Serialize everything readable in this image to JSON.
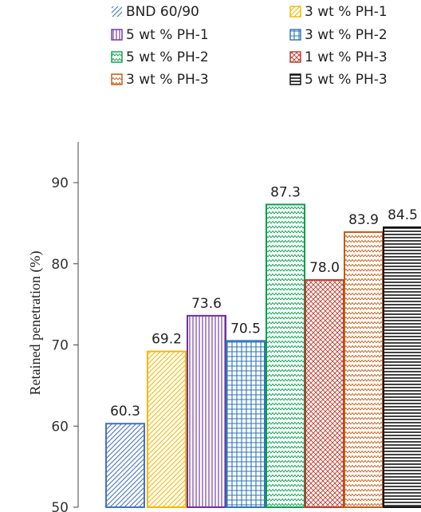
{
  "chart_data": {
    "type": "bar",
    "title": "",
    "xlabel": "",
    "ylabel": "Retained penetration (%)",
    "ylim": [
      50,
      95
    ],
    "yticks": [
      50,
      60,
      70,
      80,
      90
    ],
    "grid": false,
    "legend_position": "top",
    "categories": [
      "BND 60/90",
      "3 wt % PH-1",
      "5 wt % PH-1",
      "3 wt % PH-2",
      "5 wt % PH-2",
      "1 wt % PH-3",
      "3 wt % PH-3",
      "5 wt % PH-3"
    ],
    "values": [
      60.3,
      69.2,
      73.6,
      70.5,
      87.3,
      78.0,
      83.9,
      84.5
    ],
    "value_labels": [
      "60.3",
      "69.2",
      "73.6",
      "70.5",
      "87.3",
      "78.0",
      "83.9",
      "84.5"
    ],
    "series_styles": [
      {
        "color": "#4472c4",
        "pattern": "diagonal-lines"
      },
      {
        "color": "#f5b800",
        "pattern": "diagonal-lines"
      },
      {
        "color": "#7030a0",
        "pattern": "vertical-lines"
      },
      {
        "color": "#2e75b6",
        "pattern": "grid"
      },
      {
        "color": "#00a04a",
        "pattern": "zigzag"
      },
      {
        "color": "#c0392b",
        "pattern": "crosshatch"
      },
      {
        "color": "#c55a11",
        "pattern": "zigzag"
      },
      {
        "color": "#111111",
        "pattern": "horizontal-lines"
      }
    ],
    "legend": [
      {
        "label": "BND 60/90",
        "color": "#4472c4"
      },
      {
        "label": "3 wt % PH-1",
        "color": "#f5b800"
      },
      {
        "label": "5 wt % PH-1",
        "color": "#7030a0"
      },
      {
        "label": "3 wt % PH-2",
        "color": "#2e75b6"
      },
      {
        "label": "5 wt % PH-2",
        "color": "#00a04a"
      },
      {
        "label": "1 wt % PH-3",
        "color": "#c0392b"
      },
      {
        "label": "3 wt % PH-3",
        "color": "#c55a11"
      },
      {
        "label": "5 wt % PH-3",
        "color": "#111111"
      }
    ]
  }
}
